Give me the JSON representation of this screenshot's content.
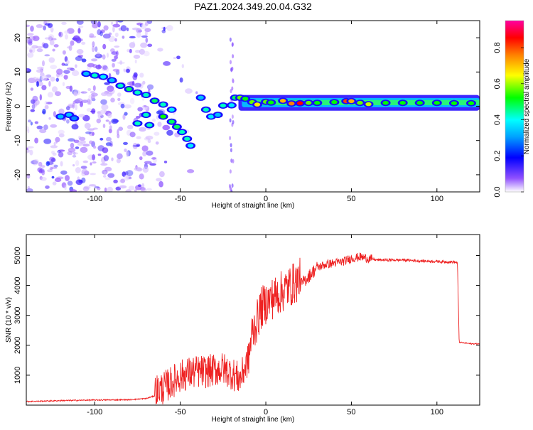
{
  "title": "PAZ1.2024.349.20.04.G32",
  "chart_data": [
    {
      "type": "heatmap",
      "xlabel": "Height of straight line (km)",
      "ylabel": "Frequency (Hz)",
      "xlim": [
        -140,
        125
      ],
      "ylim": [
        -25,
        25
      ],
      "xticks": [
        -100,
        -50,
        0,
        50,
        100
      ],
      "yticks": [
        -20,
        -10,
        0,
        10,
        20
      ],
      "colorbar": {
        "label": "Normalized spectral amplitude",
        "range": [
          0,
          0.95
        ],
        "ticks": [
          0.0,
          0.2,
          0.4,
          0.6,
          0.8
        ],
        "colormap": [
          "#ffffff",
          "#8000ff",
          "#0000ff",
          "#00ffff",
          "#00ff00",
          "#ffff00",
          "#ff8000",
          "#ff0000",
          "#ff00a0"
        ]
      },
      "ridge": [
        [
          -105,
          9.5,
          0.35
        ],
        [
          -100,
          9.0,
          0.45
        ],
        [
          -95,
          8.6,
          0.4
        ],
        [
          -90,
          7.6,
          0.35
        ],
        [
          -85,
          6.0,
          0.45
        ],
        [
          -80,
          5.0,
          0.5
        ],
        [
          -75,
          4.0,
          0.45
        ],
        [
          -70,
          3.3,
          0.45
        ],
        [
          -65,
          1.6,
          0.5
        ],
        [
          -60,
          0.5,
          0.45
        ],
        [
          -55,
          -1.0,
          0.4
        ],
        [
          -60,
          -3.0,
          0.55
        ],
        [
          -55,
          -4.5,
          0.5
        ],
        [
          -52,
          -6.0,
          0.5
        ],
        [
          -49,
          -7.5,
          0.45
        ],
        [
          -46,
          -9.5,
          0.45
        ],
        [
          -44,
          -11.5,
          0.4
        ],
        [
          -70,
          -2.5,
          0.45
        ],
        [
          -75,
          -5.0,
          0.45
        ],
        [
          -68,
          -5.5,
          0.45
        ],
        [
          -120,
          -3.0,
          0.35
        ],
        [
          -115,
          -2.5,
          0.35
        ],
        [
          -112,
          -3.5,
          0.3
        ],
        [
          -38,
          2.5,
          0.35
        ],
        [
          -35,
          -1.0,
          0.45
        ],
        [
          -32,
          -3.0,
          0.4
        ],
        [
          -28,
          -2.5,
          0.35
        ],
        [
          -25,
          0.2,
          0.45
        ],
        [
          -20,
          0.3,
          0.4
        ],
        [
          -18,
          2.5,
          0.5
        ],
        [
          -15,
          2.5,
          0.6
        ],
        [
          -12,
          2.2,
          0.55
        ],
        [
          -8,
          1.2,
          0.6
        ],
        [
          -5,
          0.5,
          0.7
        ],
        [
          0,
          1.3,
          0.6
        ],
        [
          3,
          1.1,
          0.55
        ],
        [
          10,
          1.6,
          0.75
        ],
        [
          15,
          0.8,
          0.8
        ],
        [
          20,
          0.9,
          0.9
        ],
        [
          25,
          1.0,
          0.6
        ],
        [
          30,
          1.0,
          0.55
        ],
        [
          40,
          1.2,
          0.55
        ],
        [
          47,
          1.5,
          0.85
        ],
        [
          50,
          1.5,
          0.75
        ],
        [
          55,
          1.0,
          0.6
        ],
        [
          60,
          0.6,
          0.65
        ],
        [
          70,
          1.0,
          0.55
        ],
        [
          80,
          1.0,
          0.55
        ],
        [
          90,
          1.0,
          0.55
        ],
        [
          100,
          1.0,
          0.55
        ],
        [
          110,
          0.9,
          0.55
        ],
        [
          120,
          0.9,
          0.55
        ]
      ]
    },
    {
      "type": "line",
      "xlabel": "Height of straight line (km)",
      "ylabel": "SNR (10 * v/v)",
      "xlim": [
        -140,
        125
      ],
      "ylim": [
        0,
        5700
      ],
      "xticks": [
        -100,
        -50,
        0,
        50,
        100
      ],
      "yticks": [
        1000,
        2000,
        3000,
        4000,
        5000
      ],
      "color": "#ee2222",
      "x": [
        -140,
        -120,
        -100,
        -80,
        -70,
        -60,
        -55,
        -50,
        -45,
        -40,
        -35,
        -30,
        -25,
        -20,
        -15,
        -10,
        -8,
        -5,
        -3,
        0,
        5,
        10,
        15,
        20,
        25,
        30,
        35,
        40,
        45,
        50,
        55,
        60,
        65,
        70,
        80,
        90,
        100,
        110,
        112,
        113,
        120,
        125
      ],
      "y": [
        120,
        150,
        170,
        180,
        220,
        400,
        600,
        800,
        900,
        950,
        950,
        1000,
        1050,
        900,
        700,
        1400,
        2200,
        2600,
        3000,
        3200,
        3400,
        3600,
        3800,
        4000,
        4300,
        4600,
        4700,
        4750,
        4800,
        4900,
        4950,
        4900,
        4850,
        4850,
        4850,
        4820,
        4800,
        4780,
        4760,
        2100,
        2050,
        2050
      ]
    }
  ]
}
